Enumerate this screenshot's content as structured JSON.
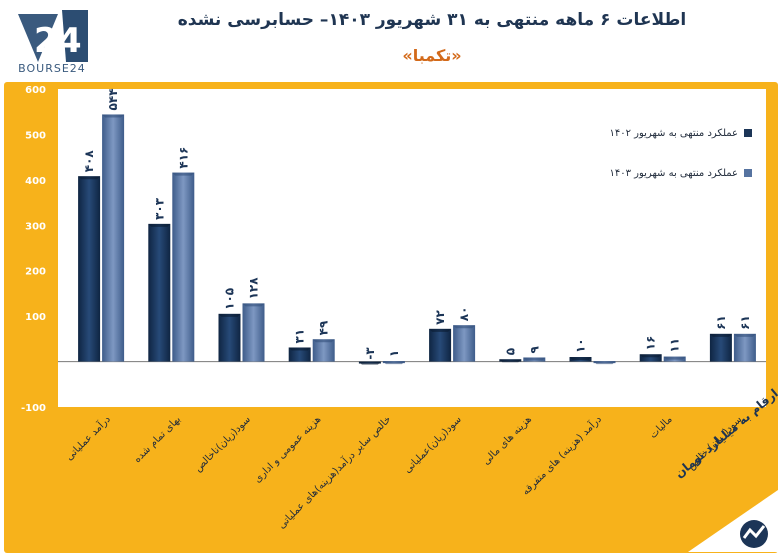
{
  "header": {
    "logo_text": "BOURSE24",
    "title": "اطلاعات ۶ ماهه منتهی به ۳۱ شهریور ۱۴۰۳– حسابرسی نشده",
    "subtitle": "«تکمبا»"
  },
  "badge": {
    "text": "ارقام به میلیارد تومان"
  },
  "colors": {
    "frame": "#f7b21b",
    "series_1402": "#1c3557",
    "series_1403": "#5673a0"
  },
  "chart_data": {
    "type": "bar",
    "ylim": [
      -100,
      600
    ],
    "yticks": [
      -100,
      100,
      200,
      300,
      400,
      500,
      600
    ],
    "ytick_labels": [
      "-100",
      "100",
      "200",
      "300",
      "400",
      "500",
      "600"
    ],
    "legend_position": "top-right",
    "categories": [
      "درآمد عملیاتی",
      "بهای تمام شده",
      "سود(زیان)ناخالص",
      "هزینه عمومی و اداری",
      "خالص سایر درآمد(هزینه)های عملیاتی",
      "سود(زیان)عملیاتی",
      "هزینه های مالی",
      "درآمد (هزینه) های متفرقه",
      "مالیات",
      "سود(زیان) خالص"
    ],
    "series": [
      {
        "name": "عملکرد منتهی به شهریور ۱۴۰۲",
        "values": [
          408,
          303,
          105,
          31,
          -3,
          72,
          5,
          10,
          16,
          61
        ],
        "labels": [
          "۴۰۸",
          "۳۰۳",
          "۱۰۵",
          "۳۱",
          "-۳",
          "۷۲",
          "۵",
          "۱۰",
          "۱۶",
          "۶۱"
        ]
      },
      {
        "name": "عملکرد منتهی به شهریور ۱۴۰۳",
        "values": [
          544,
          416,
          128,
          49,
          1,
          80,
          9,
          1,
          11,
          61
        ],
        "labels": [
          "۵۴۴",
          "۴۱۶",
          "۱۲۸",
          "۴۹",
          "۱",
          "۸۰",
          "۹",
          "",
          "۱۱",
          "۶۱"
        ]
      }
    ]
  }
}
